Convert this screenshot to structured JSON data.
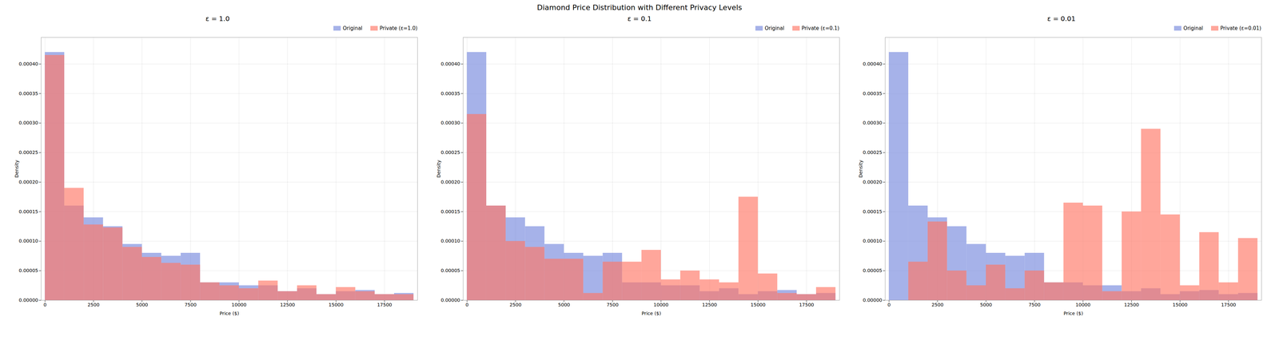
{
  "title": "Diamond Price Distribution with Different Privacy Levels",
  "chart_data": [
    {
      "type": "histogram",
      "title": "ε = 1.0",
      "bins": [
        0,
        1000,
        2000,
        3000,
        4000,
        5000,
        6000,
        7000,
        8000,
        9000,
        10000,
        11000,
        12000,
        13000,
        14000,
        15000,
        16000,
        17000,
        18000,
        19000
      ],
      "series": [
        {
          "name": "Original",
          "color": "#7788dd",
          "values": [
            0.00042,
            0.00016,
            0.00014,
            0.000125,
            9.5e-05,
            8e-05,
            7.5e-05,
            8e-05,
            3e-05,
            3e-05,
            2.5e-05,
            2.5e-05,
            1.5e-05,
            2e-05,
            1e-05,
            1.5e-05,
            1.7e-05,
            1e-05,
            1.2e-05
          ]
        },
        {
          "name": "Private (ε=1.0)",
          "color": "#ff7766",
          "values": [
            0.000415,
            0.00019,
            0.000128,
            0.000123,
            9e-05,
            7.3e-05,
            6.3e-05,
            6e-05,
            3e-05,
            2.5e-05,
            2e-05,
            3.3e-05,
            1.5e-05,
            2.5e-05,
            1e-05,
            2.2e-05,
            1.5e-05,
            1e-05,
            1e-05
          ]
        }
      ],
      "xlabel": "Price ($)",
      "ylabel": "Density",
      "xlim": [
        -200,
        19200
      ],
      "xticks": [
        0,
        2500,
        5000,
        7500,
        10000,
        12500,
        15000,
        17500
      ],
      "ylim": [
        0,
        0.000445
      ],
      "yticks": [
        {
          "value": 0,
          "label": "0.00000"
        },
        {
          "value": 5e-05,
          "label": "0.00005"
        },
        {
          "value": 0.0001,
          "label": "0.00010"
        },
        {
          "value": 0.00015,
          "label": "0.00015"
        },
        {
          "value": 0.0002,
          "label": "0.00020"
        },
        {
          "value": 0.00025,
          "label": "0.00025"
        },
        {
          "value": 0.0003,
          "label": "0.00030"
        },
        {
          "value": 0.00035,
          "label": "0.00035"
        },
        {
          "value": 0.0004,
          "label": "0.00040"
        }
      ],
      "grid": true,
      "legend": "upper right"
    },
    {
      "type": "histogram",
      "title": "ε = 0.1",
      "bins": [
        0,
        1000,
        2000,
        3000,
        4000,
        5000,
        6000,
        7000,
        8000,
        9000,
        10000,
        11000,
        12000,
        13000,
        14000,
        15000,
        16000,
        17000,
        18000,
        19000
      ],
      "series": [
        {
          "name": "Original",
          "color": "#7788dd",
          "values": [
            0.00042,
            0.00016,
            0.00014,
            0.000125,
            9.5e-05,
            8e-05,
            7.5e-05,
            8e-05,
            3e-05,
            3e-05,
            2.5e-05,
            2.5e-05,
            1.5e-05,
            2e-05,
            1e-05,
            1.5e-05,
            1.7e-05,
            1e-05,
            1.2e-05
          ]
        },
        {
          "name": "Private (ε=0.1)",
          "color": "#ff7766",
          "values": [
            0.000315,
            0.00016,
            0.0001,
            9e-05,
            7e-05,
            7e-05,
            1.2e-05,
            6.5e-05,
            6.5e-05,
            8.5e-05,
            3.5e-05,
            5e-05,
            3.5e-05,
            3e-05,
            0.000175,
            4.5e-05,
            1.2e-05,
            1e-05,
            2.2e-05
          ]
        }
      ],
      "xlabel": "Price ($)",
      "ylabel": "Density",
      "xlim": [
        -200,
        19200
      ],
      "xticks": [
        0,
        2500,
        5000,
        7500,
        10000,
        12500,
        15000,
        17500
      ],
      "ylim": [
        0,
        0.000445
      ],
      "yticks": [
        {
          "value": 0,
          "label": "0.00000"
        },
        {
          "value": 5e-05,
          "label": "0.00005"
        },
        {
          "value": 0.0001,
          "label": "0.00010"
        },
        {
          "value": 0.00015,
          "label": "0.00015"
        },
        {
          "value": 0.0002,
          "label": "0.00020"
        },
        {
          "value": 0.00025,
          "label": "0.00025"
        },
        {
          "value": 0.0003,
          "label": "0.00030"
        },
        {
          "value": 0.00035,
          "label": "0.00035"
        },
        {
          "value": 0.0004,
          "label": "0.00040"
        }
      ],
      "grid": true,
      "legend": "upper right"
    },
    {
      "type": "histogram",
      "title": "ε = 0.01",
      "bins": [
        0,
        1000,
        2000,
        3000,
        4000,
        5000,
        6000,
        7000,
        8000,
        9000,
        10000,
        11000,
        12000,
        13000,
        14000,
        15000,
        16000,
        17000,
        18000,
        19000
      ],
      "series": [
        {
          "name": "Original",
          "color": "#7788dd",
          "values": [
            0.00042,
            0.00016,
            0.00014,
            0.000125,
            9.5e-05,
            8e-05,
            7.5e-05,
            8e-05,
            3e-05,
            3e-05,
            2.5e-05,
            2.5e-05,
            1.5e-05,
            2e-05,
            1e-05,
            1.5e-05,
            1.7e-05,
            1e-05,
            1.2e-05
          ]
        },
        {
          "name": "Private (ε=0.01)",
          "color": "#ff7766",
          "values": [
            0.0,
            6.5e-05,
            0.000133,
            5e-05,
            2.5e-05,
            6e-05,
            2e-05,
            5e-05,
            3e-05,
            0.000165,
            0.00016,
            1.5e-05,
            0.00015,
            0.00029,
            0.000145,
            2.5e-05,
            0.000115,
            3e-05,
            0.000105
          ]
        }
      ],
      "xlabel": "Price ($)",
      "ylabel": "Density",
      "xlim": [
        -200,
        19200
      ],
      "xticks": [
        0,
        2500,
        5000,
        7500,
        10000,
        12500,
        15000,
        17500
      ],
      "ylim": [
        0,
        0.000445
      ],
      "yticks": [
        {
          "value": 0,
          "label": "0.00000"
        },
        {
          "value": 5e-05,
          "label": "0.00005"
        },
        {
          "value": 0.0001,
          "label": "0.00010"
        },
        {
          "value": 0.00015,
          "label": "0.00015"
        },
        {
          "value": 0.0002,
          "label": "0.00020"
        },
        {
          "value": 0.00025,
          "label": "0.00025"
        },
        {
          "value": 0.0003,
          "label": "0.00030"
        },
        {
          "value": 0.00035,
          "label": "0.00035"
        },
        {
          "value": 0.0004,
          "label": "0.00040"
        }
      ],
      "grid": true,
      "legend": "upper right"
    }
  ]
}
